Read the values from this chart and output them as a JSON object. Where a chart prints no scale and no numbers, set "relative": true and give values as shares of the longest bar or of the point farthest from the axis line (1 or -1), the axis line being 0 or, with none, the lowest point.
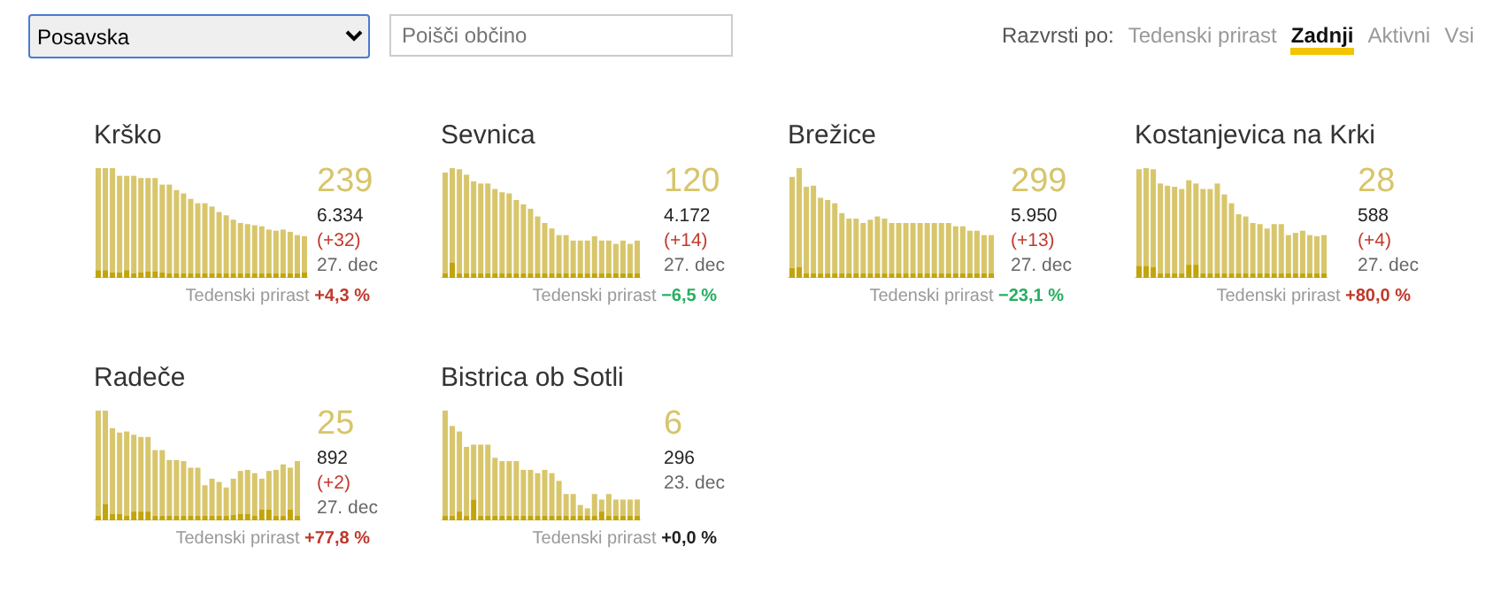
{
  "chart_data": [
    {
      "type": "other",
      "annotations": [
        "Posavska",
        "Poišči občino",
        "Razvrsti po:",
        "Tedenski prirast",
        "Zadnji",
        "Aktivni",
        "Vsi"
      ]
    },
    {
      "type": "bar",
      "title": "Krško",
      "relative": true,
      "stacked": true,
      "categories": [
        null,
        null,
        null,
        null,
        null,
        null,
        null,
        null,
        null,
        null,
        null,
        null,
        null,
        null,
        null,
        null,
        null,
        null,
        null,
        null,
        null,
        null,
        null,
        null,
        null,
        null,
        null,
        null,
        null,
        null
      ],
      "series": [
        {
          "color": "#c2a40c",
          "values": [
            0.07,
            0.07,
            0.05,
            0.05,
            0.07,
            0.04,
            0.05,
            0.06,
            0.06,
            0.05,
            0.04,
            0.04,
            0.04,
            0.04,
            0.04,
            0.04,
            0.04,
            0.04,
            0.04,
            0.04,
            0.04,
            0.04,
            0.04,
            0.04,
            0.04,
            0.04,
            0.04,
            0.04,
            0.04,
            0.05
          ]
        },
        {
          "color": "#d8c66c",
          "values": [
            0.93,
            0.93,
            0.95,
            0.88,
            0.86,
            0.89,
            0.86,
            0.85,
            0.85,
            0.8,
            0.81,
            0.76,
            0.73,
            0.68,
            0.64,
            0.64,
            0.61,
            0.56,
            0.53,
            0.49,
            0.46,
            0.45,
            0.44,
            0.43,
            0.4,
            0.39,
            0.4,
            0.38,
            0.35,
            0.33
          ]
        }
      ],
      "annotations": [
        "239",
        "6.334",
        "(+32)",
        "27. dec",
        "Tedenski prirast",
        "+4,3 %"
      ]
    },
    {
      "type": "bar",
      "title": "Sevnica",
      "relative": true,
      "stacked": true,
      "categories": [
        null,
        null,
        null,
        null,
        null,
        null,
        null,
        null,
        null,
        null,
        null,
        null,
        null,
        null,
        null,
        null,
        null,
        null,
        null,
        null,
        null,
        null,
        null,
        null,
        null,
        null,
        null,
        null
      ],
      "series": [
        {
          "color": "#c2a40c",
          "values": [
            0.04,
            0.14,
            0.04,
            0.04,
            0.04,
            0.04,
            0.04,
            0.04,
            0.04,
            0.04,
            0.04,
            0.04,
            0.04,
            0.04,
            0.04,
            0.04,
            0.04,
            0.04,
            0.04,
            0.04,
            0.04,
            0.04,
            0.04,
            0.04,
            0.04,
            0.04,
            0.04,
            0.04
          ]
        },
        {
          "color": "#d8c66c",
          "values": [
            0.92,
            0.86,
            0.95,
            0.9,
            0.84,
            0.82,
            0.82,
            0.77,
            0.74,
            0.73,
            0.67,
            0.63,
            0.59,
            0.52,
            0.46,
            0.41,
            0.35,
            0.35,
            0.3,
            0.3,
            0.3,
            0.34,
            0.3,
            0.3,
            0.27,
            0.3,
            0.27,
            0.3
          ]
        }
      ],
      "annotations": [
        "120",
        "4.172",
        "(+14)",
        "27. dec",
        "Tedenski prirast",
        "−6,5 %"
      ]
    },
    {
      "type": "bar",
      "title": "Brežice",
      "relative": true,
      "stacked": true,
      "categories": [
        null,
        null,
        null,
        null,
        null,
        null,
        null,
        null,
        null,
        null,
        null,
        null,
        null,
        null,
        null,
        null,
        null,
        null,
        null,
        null,
        null,
        null,
        null,
        null,
        null,
        null,
        null,
        null,
        null
      ],
      "series": [
        {
          "color": "#c2a40c",
          "values": [
            0.09,
            0.1,
            0.04,
            0.04,
            0.04,
            0.04,
            0.04,
            0.04,
            0.04,
            0.04,
            0.04,
            0.04,
            0.04,
            0.04,
            0.04,
            0.04,
            0.04,
            0.04,
            0.04,
            0.04,
            0.04,
            0.04,
            0.04,
            0.04,
            0.04,
            0.04,
            0.04,
            0.04,
            0.04
          ]
        },
        {
          "color": "#d8c66c",
          "values": [
            0.83,
            0.9,
            0.79,
            0.8,
            0.69,
            0.67,
            0.64,
            0.55,
            0.5,
            0.5,
            0.46,
            0.49,
            0.52,
            0.5,
            0.46,
            0.46,
            0.46,
            0.46,
            0.46,
            0.46,
            0.46,
            0.46,
            0.46,
            0.43,
            0.43,
            0.39,
            0.39,
            0.35,
            0.35
          ]
        }
      ],
      "annotations": [
        "299",
        "5.950",
        "(+13)",
        "27. dec",
        "Tedenski prirast",
        "−23,1 %"
      ]
    },
    {
      "type": "bar",
      "title": "Kostanjevica na Krki",
      "relative": true,
      "stacked": true,
      "categories": [
        null,
        null,
        null,
        null,
        null,
        null,
        null,
        null,
        null,
        null,
        null,
        null,
        null,
        null,
        null,
        null,
        null,
        null,
        null,
        null,
        null,
        null,
        null,
        null,
        null,
        null,
        null
      ],
      "series": [
        {
          "color": "#c2a40c",
          "values": [
            0.11,
            0.11,
            0.1,
            0.04,
            0.04,
            0.04,
            0.04,
            0.12,
            0.12,
            0.04,
            0.04,
            0.04,
            0.04,
            0.04,
            0.04,
            0.04,
            0.04,
            0.04,
            0.04,
            0.04,
            0.04,
            0.04,
            0.04,
            0.04,
            0.04,
            0.04,
            0.04
          ]
        },
        {
          "color": "#d8c66c",
          "values": [
            0.88,
            0.89,
            0.89,
            0.82,
            0.8,
            0.79,
            0.77,
            0.77,
            0.74,
            0.77,
            0.77,
            0.82,
            0.72,
            0.64,
            0.54,
            0.52,
            0.46,
            0.45,
            0.41,
            0.45,
            0.45,
            0.35,
            0.37,
            0.39,
            0.35,
            0.34,
            0.35
          ]
        }
      ],
      "annotations": [
        "28",
        "588",
        "(+4)",
        "27. dec",
        "Tedenski prirast",
        "+80,0 %"
      ]
    },
    {
      "type": "bar",
      "title": "Radeče",
      "relative": true,
      "stacked": true,
      "categories": [
        null,
        null,
        null,
        null,
        null,
        null,
        null,
        null,
        null,
        null,
        null,
        null,
        null,
        null,
        null,
        null,
        null,
        null,
        null,
        null,
        null,
        null,
        null,
        null,
        null,
        null,
        null,
        null,
        null
      ],
      "series": [
        {
          "color": "#c2a40c",
          "values": [
            0.04,
            0.15,
            0.06,
            0.06,
            0.04,
            0.08,
            0.08,
            0.08,
            0.04,
            0.04,
            0.04,
            0.04,
            0.04,
            0.04,
            0.04,
            0.04,
            0.04,
            0.04,
            0.04,
            0.05,
            0.06,
            0.06,
            0.04,
            0.1,
            0.1,
            0.04,
            0.04,
            0.1,
            0.04
          ]
        },
        {
          "color": "#d8c66c",
          "values": [
            0.96,
            0.85,
            0.78,
            0.74,
            0.77,
            0.7,
            0.68,
            0.68,
            0.6,
            0.6,
            0.51,
            0.51,
            0.5,
            0.44,
            0.44,
            0.28,
            0.34,
            0.31,
            0.26,
            0.33,
            0.39,
            0.4,
            0.39,
            0.28,
            0.35,
            0.42,
            0.47,
            0.38,
            0.5
          ]
        }
      ],
      "annotations": [
        "25",
        "892",
        "(+2)",
        "27. dec",
        "Tedenski prirast",
        "+77,8 %"
      ]
    },
    {
      "type": "bar",
      "title": "Bistrica ob Sotli",
      "relative": true,
      "stacked": true,
      "categories": [
        null,
        null,
        null,
        null,
        null,
        null,
        null,
        null,
        null,
        null,
        null,
        null,
        null,
        null,
        null,
        null,
        null,
        null,
        null,
        null,
        null,
        null,
        null,
        null,
        null,
        null,
        null,
        null
      ],
      "series": [
        {
          "color": "#c2a40c",
          "values": [
            0.04,
            0.04,
            0.08,
            0.04,
            0.19,
            0.04,
            0.04,
            0.04,
            0.04,
            0.04,
            0.04,
            0.04,
            0.04,
            0.04,
            0.04,
            0.04,
            0.04,
            0.04,
            0.04,
            0.04,
            0.04,
            0.04,
            0.08,
            0.04,
            0.04,
            0.04,
            0.04,
            0.04
          ]
        },
        {
          "color": "#d8c66c",
          "values": [
            0.96,
            0.82,
            0.73,
            0.63,
            0.5,
            0.65,
            0.65,
            0.53,
            0.5,
            0.5,
            0.5,
            0.42,
            0.42,
            0.39,
            0.42,
            0.39,
            0.32,
            0.2,
            0.2,
            0.1,
            0.07,
            0.2,
            0.11,
            0.2,
            0.15,
            0.15,
            0.15,
            0.15
          ]
        }
      ],
      "annotations": [
        "6",
        "296",
        "23. dec",
        "Tedenski prirast",
        "+0,0 %"
      ]
    }
  ]
}
